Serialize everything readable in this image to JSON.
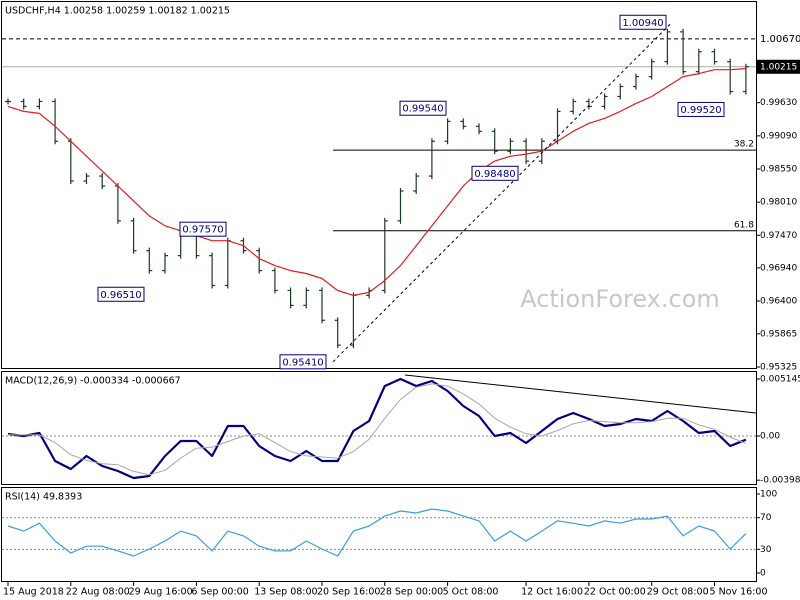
{
  "chart_data": [
    {
      "type": "line",
      "title": "USDCHF,H4 1.00258 1.00259 1.00182 1.00215",
      "categories": [
        "15 Aug 2018",
        null,
        null,
        null,
        "22 Aug 08:00",
        null,
        null,
        null,
        "29 Aug 16:00",
        null,
        null,
        null,
        "6 Sep 00:00",
        null,
        null,
        null,
        "13 Sep 08:00",
        null,
        null,
        null,
        "20 Sep 16:00",
        null,
        null,
        null,
        "28 Sep 00:00",
        null,
        null,
        null,
        "5 Oct 08:00",
        null,
        null,
        null,
        null,
        "12 Oct 16:00",
        null,
        null,
        null,
        "22 Oct 00:00",
        null,
        null,
        null,
        "29 Oct 08:00",
        null,
        null,
        null,
        "5 Nov 16:00",
        null,
        null
      ],
      "series": [
        {
          "style": "bars",
          "color": "#1f3a1f",
          "values": [
            0.9965,
            0.99569,
            0.9965,
            0.99002,
            0.98354,
            0.98435,
            0.98273,
            0.97706,
            0.9722,
            0.96896,
            0.97139,
            0.97463,
            0.97139,
            0.96653,
            0.97382,
            0.9722,
            0.96896,
            0.96572,
            0.96329,
            0.96572,
            0.96086,
            0.95681,
            0.96491,
            0.96572,
            0.97706,
            0.98192,
            0.98435,
            0.99002,
            0.99326,
            0.99245,
            0.99164,
            0.9884,
            0.99002,
            0.98678,
            0.99002,
            0.99488,
            0.9965,
            0.99569,
            0.99731,
            0.99893,
            1.00055,
            1.00298,
            1.00784,
            1.00136,
            1.0046,
            1.00298,
            0.99812,
            1.00215
          ]
        },
        {
          "style": "line",
          "color": "#e01e1e",
          "values": [
            0.99569,
            0.99488,
            0.99456,
            0.99245,
            0.99002,
            0.98759,
            0.98516,
            0.98273,
            0.9803,
            0.97787,
            0.97625,
            0.97544,
            0.97463,
            0.97382,
            0.97382,
            0.97301,
            0.97091,
            0.96977,
            0.96896,
            0.96848,
            0.96767,
            0.96572,
            0.96491,
            0.9654,
            0.96734,
            0.96977,
            0.97301,
            0.97625,
            0.97949,
            0.98273,
            0.98516,
            0.98678,
            0.98759,
            0.98792,
            0.9884,
            0.99002,
            0.99164,
            0.99294,
            0.99375,
            0.99488,
            0.99618,
            0.99731,
            0.99893,
            1.00055,
            1.00104,
            1.00168,
            1.00168,
            1.00185
          ]
        }
      ],
      "ylim": [
        0.95309,
        1.0127
      ],
      "yticks": [
        {
          "value": 0.9963,
          "label": "0.99630"
        },
        {
          "value": 0.9909,
          "label": "0.99090"
        },
        {
          "value": 0.9855,
          "label": "0.98550"
        },
        {
          "value": 0.9801,
          "label": "0.98010"
        },
        {
          "value": 0.9747,
          "label": "0.97470"
        },
        {
          "value": 0.9694,
          "label": "0.96940"
        },
        {
          "value": 0.964,
          "label": "0.96400"
        },
        {
          "value": 0.95865,
          "label": "0.95865"
        },
        {
          "value": 0.95325,
          "label": "0.95325"
        }
      ],
      "levels": [
        {
          "value": 1.0067,
          "label": "1.00670"
        }
      ],
      "last": {
        "value": 1.00215,
        "label": "1.00215"
      },
      "annotations": [
        {
          "value": 1.0094,
          "label": "1.00940"
        },
        {
          "value": 0.9954,
          "label": "0.99540"
        },
        {
          "value": 0.9848,
          "label": "0.98480"
        },
        {
          "value": 0.9757,
          "label": "0.97570"
        },
        {
          "value": 0.9651,
          "label": "0.96510"
        },
        {
          "value": 0.9541,
          "label": "0.95410"
        },
        {
          "value": 0.9952,
          "label": "0.99520"
        }
      ],
      "fibonacci": [
        {
          "level": 38.2,
          "value": 0.98857
        },
        {
          "level": 61.8,
          "value": 0.97544
        }
      ],
      "watermark": "ActionForex.com"
    },
    {
      "type": "line",
      "title": "MACD(12,26,9) -0.000334 -0.000667",
      "series": [
        {
          "color": "#000080",
          "values": [
            0.000181,
            0,
            0.000271,
            -0.002258,
            -0.00298,
            -0.001806,
            -0.002709,
            -0.003161,
            -0.003793,
            -0.003612,
            -0.001806,
            -0.000452,
            -0.000452,
            -0.001806,
            0.000903,
            0.000903,
            -0.000903,
            -0.001806,
            -0.002258,
            -0.001355,
            -0.002258,
            -0.002258,
            0.000452,
            0.001355,
            0.004515,
            0.005145,
            0.004515,
            0.004967,
            0.004064,
            0.002709,
            0.001806,
            0,
            0.000271,
            -0.000632,
            0.000452,
            0.001535,
            0.002077,
            0.001535,
            0.000903,
            0.001084,
            0.001535,
            0.001355,
            0.002258,
            0.001355,
            0.000271,
            0.000452,
            -0.000903,
            -0.000334
          ]
        },
        {
          "color": "#a8a8a8",
          "values": [
            0.0001,
            0.0001,
            0.0001,
            -0.0006,
            -0.0017,
            -0.0022,
            -0.0025,
            -0.0026,
            -0.0032,
            -0.0035,
            -0.0031,
            -0.002,
            -0.0011,
            -0.001,
            -0.0005,
            0,
            0.0002,
            -0.0006,
            -0.0014,
            -0.0018,
            -0.0019,
            -0.002,
            -0.0014,
            -0.0003,
            0.0016,
            0.0033,
            0.0044,
            0.0047,
            0.0045,
            0.0038,
            0.0029,
            0.0016,
            0.0008,
            0.0002,
            0,
            0.0005,
            0.0011,
            0.0014,
            0.0013,
            0.0012,
            0.0012,
            0.0013,
            0.0016,
            0.0016,
            0.001,
            0.0006,
            -0.0001,
            -0.000667
          ]
        }
      ],
      "ylim": [
        -0.004334,
        0.005777
      ],
      "yticks": [
        0.005145,
        {
          "value": 0,
          "label": "0.00"
        },
        -0.003989
      ],
      "levels": [
        0
      ]
    },
    {
      "type": "line",
      "title": "RSI(14) 49.8393",
      "series": [
        {
          "color": "#3c9ee0",
          "values": [
            59.5,
            53,
            63,
            40.5,
            25.3,
            34,
            34,
            28,
            21.5,
            30.4,
            40.5,
            53,
            47,
            28,
            53,
            47,
            34,
            28,
            28,
            40.5,
            30.4,
            21.5,
            53,
            59.5,
            72,
            78.5,
            76,
            81,
            78.5,
            72,
            66,
            40.5,
            53,
            40.5,
            53,
            66,
            63,
            59.5,
            66,
            63,
            68.4,
            68.4,
            72,
            47,
            59.5,
            53,
            30.4,
            49.8393
          ]
        }
      ],
      "ylim": [
        -10.1,
        107.6
      ],
      "yticks": [
        100,
        70,
        30,
        0
      ],
      "levels": [
        70,
        30
      ]
    }
  ]
}
